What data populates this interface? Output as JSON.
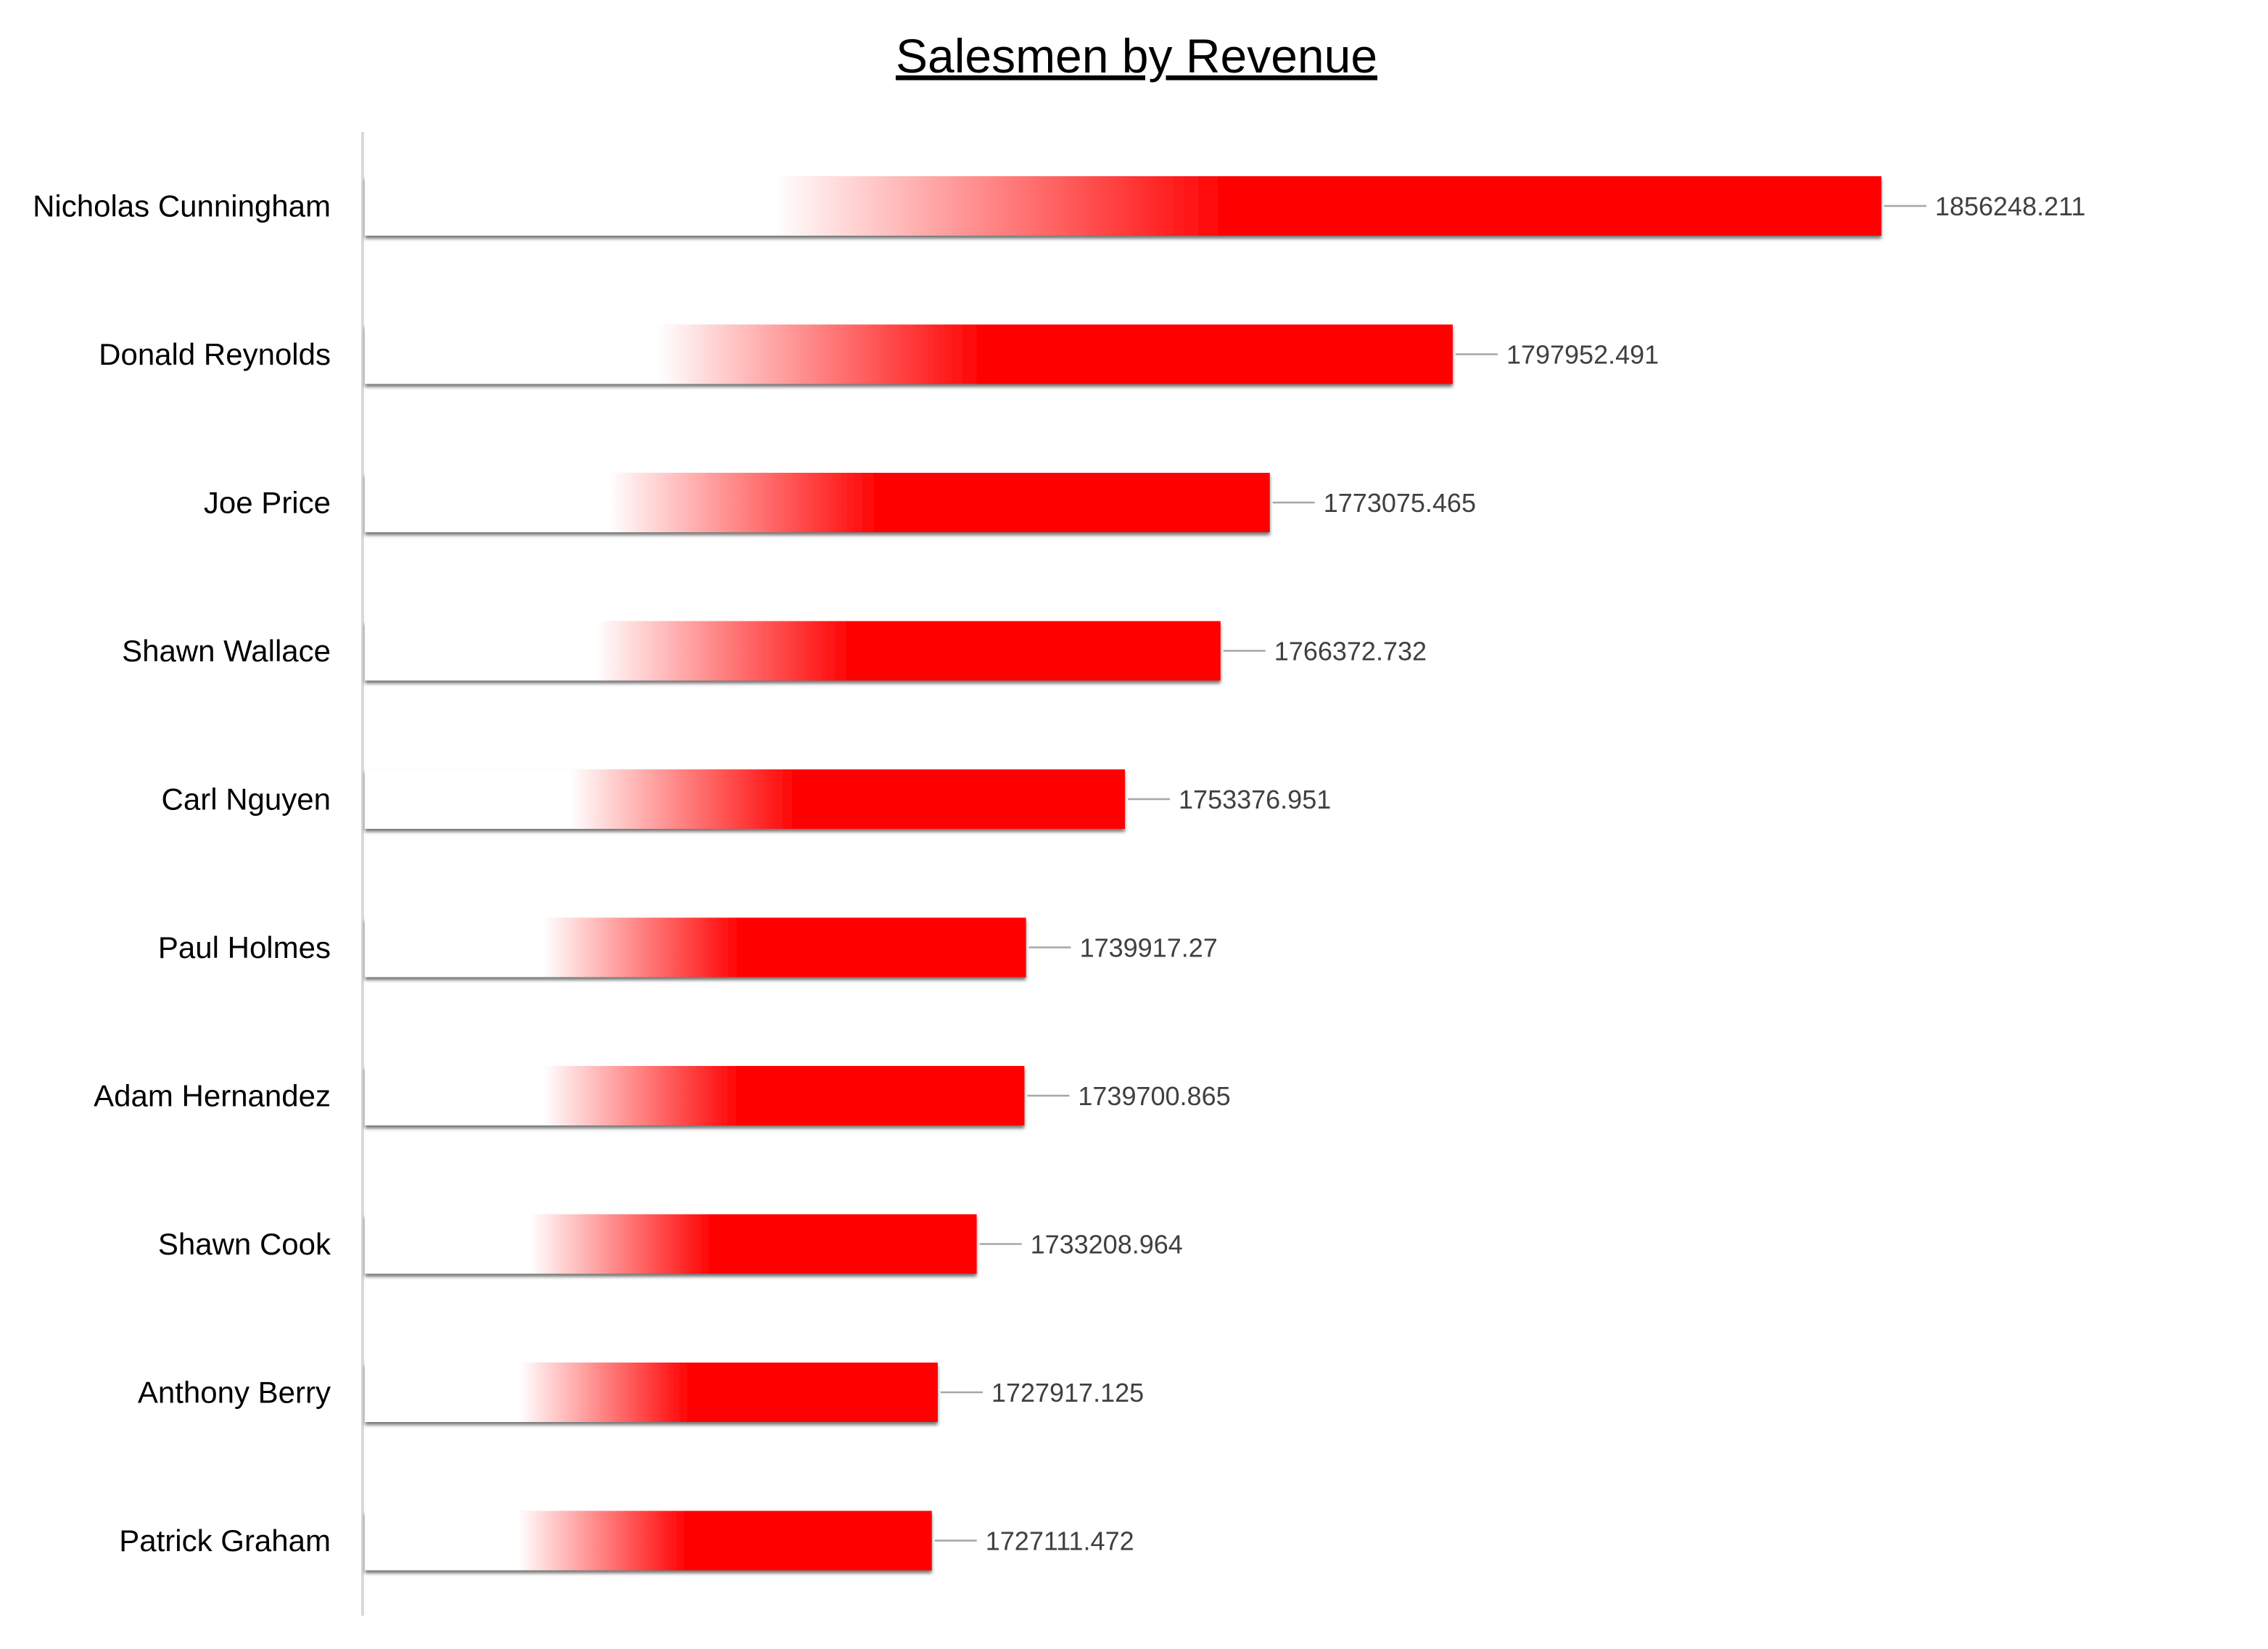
{
  "chart_data": {
    "type": "bar",
    "orientation": "horizontal",
    "title": "Salesmen by Revenue",
    "xlabel": "",
    "ylabel": "",
    "categories": [
      "Nicholas Cunningham",
      "Donald Reynolds",
      "Joe Price",
      "Shawn Wallace",
      "Carl Nguyen",
      "Paul Holmes",
      "Adam Hernandez",
      "Shawn Cook",
      "Anthony Berry",
      "Patrick Graham"
    ],
    "values": [
      1856248.211,
      1797952.491,
      1773075.465,
      1766372.732,
      1753376.951,
      1739917.27,
      1739700.865,
      1733208.964,
      1727917.125,
      1727111.472
    ],
    "data_labels": [
      "1856248.211",
      "1797952.491",
      "1773075.465",
      "1766372.732",
      "1753376.951",
      "1739917.27",
      "1739700.865",
      "1733208.964",
      "1727917.125",
      "1727111.472"
    ],
    "xlim": [
      1650000,
      1860000
    ],
    "grid": false,
    "legend": "none",
    "bar_color": "#ff0000",
    "bar_fade_color": "#ffffff",
    "axis_color": "#d9d9d9",
    "label_color": "#000000",
    "value_label_color": "#404040",
    "leader_line_color": "#a6a6a6"
  }
}
